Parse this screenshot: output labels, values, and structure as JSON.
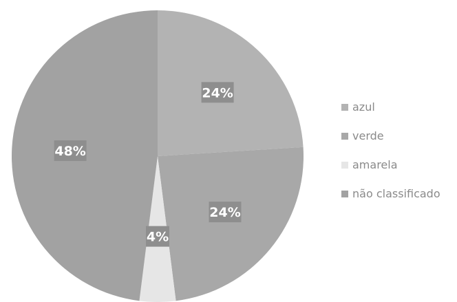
{
  "chart_data": {
    "type": "pie",
    "categories": [
      "azul",
      "verde",
      "amarela",
      "não classificado"
    ],
    "values": [
      24,
      24,
      4,
      48
    ],
    "data_labels": [
      "24%",
      "24%",
      "4%",
      "48%"
    ],
    "colors": [
      "#b3b3b3",
      "#a8a8a8",
      "#e6e6e6",
      "#a2a2a2"
    ],
    "label_color": "#8e8e8e",
    "legend": {
      "placement": "right",
      "entries": [
        "azul",
        "verde",
        "amarela",
        "não classificado"
      ]
    },
    "title": "",
    "start_angle_degrees": 0,
    "direction": "clockwise"
  }
}
